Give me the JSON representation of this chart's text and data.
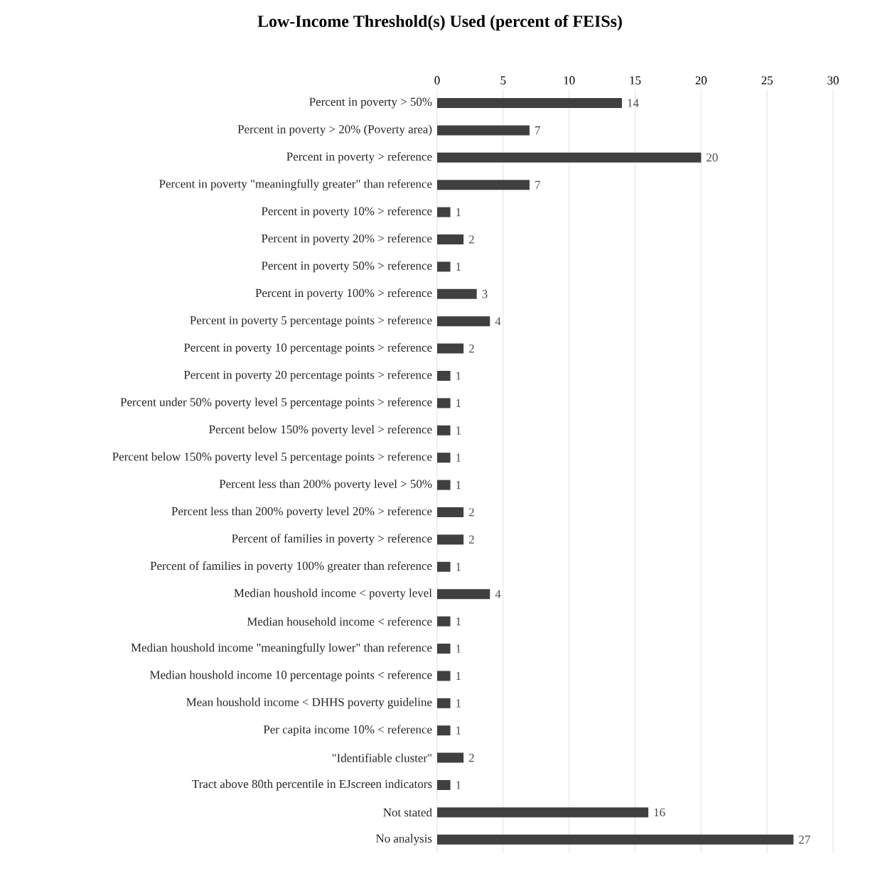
{
  "chart_data": {
    "type": "bar",
    "orientation": "horizontal",
    "title": "Low-Income Threshold(s) Used (percent of FEISs)",
    "categories": [
      "Percent in poverty > 50%",
      "Percent in poverty > 20% (Poverty area)",
      "Percent in poverty > reference",
      "Percent in poverty \"meaningfully greater\" than reference",
      "Percent in poverty 10% > reference",
      "Percent in poverty 20% > reference",
      "Percent in poverty 50% > reference",
      "Percent in poverty 100% > reference",
      "Percent in poverty 5 percentage points > reference",
      "Percent in poverty 10 percentage points > reference",
      "Percent in poverty 20 percentage points > reference",
      "Percent under 50% poverty level 5 percentage points > reference",
      "Percent below 150% poverty level > reference",
      "Percent below 150% poverty level 5 percentage points > reference",
      "Percent less than 200% poverty level > 50%",
      "Percent less than 200% poverty level 20% > reference",
      "Percent of families in poverty > reference",
      "Percent of families in poverty 100%  greater than reference",
      "Median houshold income < poverty level",
      "Median household income < reference",
      "Median houshold income \"meaningfully lower\" than reference",
      "Median houshold income 10 percentage points <  reference",
      "Mean houshold income < DHHS poverty guideline",
      "Per capita income 10% < reference",
      "\"Identifiable cluster\"",
      "Tract above 80th percentile in EJscreen indicators",
      "Not stated",
      "No analysis"
    ],
    "values": [
      14,
      7,
      20,
      7,
      1,
      2,
      1,
      3,
      4,
      2,
      1,
      1,
      1,
      1,
      1,
      2,
      2,
      1,
      4,
      1,
      1,
      1,
      1,
      1,
      2,
      1,
      16,
      27
    ],
    "color": "#404040",
    "xlim": [
      0,
      30
    ],
    "xticks": [
      0,
      5,
      10,
      15,
      20,
      25,
      30
    ],
    "grid": "x",
    "data_labels": true
  }
}
